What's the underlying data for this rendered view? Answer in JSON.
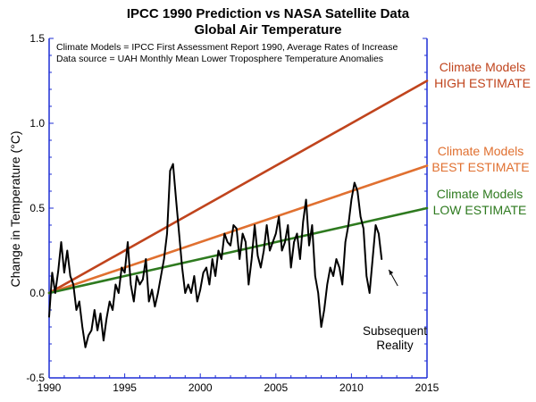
{
  "colors": {
    "axis": "#1f2fd6",
    "high": "#c0441d",
    "best": "#e07030",
    "low": "#2e7a1f",
    "observed": "#000000"
  },
  "chart_data": {
    "type": "line",
    "title": "IPCC 1990 Prediction vs NASA Satellite Data",
    "subtitle": "Global Air Temperature",
    "ylabel": "Change in Temperature (°C)",
    "xlabel": "",
    "notes": [
      "Climate Models = IPCC First Assessment Report 1990, Average Rates of Increase",
      "Data source = UAH Monthly Mean Lower Troposphere Temperature Anomalies"
    ],
    "xlim": [
      1990,
      2015
    ],
    "ylim": [
      -0.5,
      1.5
    ],
    "x_ticks": [
      "1990",
      "1995",
      "2000",
      "2005",
      "2010",
      "2015"
    ],
    "y_ticks": [
      "-0.5",
      "0.0",
      "0.5",
      "1.0",
      "1.5"
    ],
    "grid": false,
    "series": [
      {
        "key": "high",
        "label_lines": [
          "Climate Models",
          "HIGH ESTIMATE"
        ],
        "x": [
          1990,
          2015
        ],
        "y": [
          0.0,
          1.25
        ]
      },
      {
        "key": "best",
        "label_lines": [
          "Climate Models",
          "BEST ESTIMATE"
        ],
        "x": [
          1990,
          2015
        ],
        "y": [
          0.0,
          0.75
        ]
      },
      {
        "key": "low",
        "label_lines": [
          "Climate Models",
          "LOW ESTIMATE"
        ],
        "x": [
          1990,
          2015
        ],
        "y": [
          0.0,
          0.5
        ]
      },
      {
        "key": "observed",
        "label_lines": [
          "Subsequent",
          "Reality"
        ],
        "x": [
          1990,
          1990.2,
          1990.4,
          1990.6,
          1990.8,
          1991.0,
          1991.2,
          1991.4,
          1991.6,
          1991.8,
          1992.0,
          1992.2,
          1992.4,
          1992.6,
          1992.8,
          1993.0,
          1993.2,
          1993.4,
          1993.6,
          1993.8,
          1994.0,
          1994.2,
          1994.4,
          1994.6,
          1994.8,
          1995.0,
          1995.2,
          1995.4,
          1995.6,
          1995.8,
          1996.0,
          1996.2,
          1996.4,
          1996.6,
          1996.8,
          1997.0,
          1997.2,
          1997.4,
          1997.6,
          1997.8,
          1998.0,
          1998.2,
          1998.4,
          1998.6,
          1998.8,
          1999.0,
          1999.2,
          1999.4,
          1999.6,
          1999.8,
          2000.0,
          2000.2,
          2000.4,
          2000.6,
          2000.8,
          2001.0,
          2001.2,
          2001.4,
          2001.6,
          2001.8,
          2002.0,
          2002.2,
          2002.4,
          2002.6,
          2002.8,
          2003.0,
          2003.2,
          2003.4,
          2003.6,
          2003.8,
          2004.0,
          2004.2,
          2004.4,
          2004.6,
          2004.8,
          2005.0,
          2005.2,
          2005.4,
          2005.6,
          2005.8,
          2006.0,
          2006.2,
          2006.4,
          2006.6,
          2006.8,
          2007.0,
          2007.2,
          2007.4,
          2007.6,
          2007.8,
          2008.0,
          2008.2,
          2008.4,
          2008.6,
          2008.8,
          2009.0,
          2009.2,
          2009.4,
          2009.6,
          2009.8,
          2010.0,
          2010.2,
          2010.4,
          2010.6,
          2010.8,
          2011.0,
          2011.2,
          2011.4,
          2011.6,
          2011.8,
          2012.0
        ],
        "y": [
          -0.14,
          0.12,
          0.0,
          0.13,
          0.3,
          0.12,
          0.25,
          0.1,
          0.05,
          -0.1,
          -0.05,
          -0.2,
          -0.32,
          -0.25,
          -0.22,
          -0.1,
          -0.22,
          -0.12,
          -0.28,
          -0.15,
          -0.05,
          -0.1,
          0.05,
          0.0,
          0.15,
          0.12,
          0.3,
          0.05,
          -0.05,
          0.1,
          0.05,
          0.08,
          0.2,
          -0.05,
          0.02,
          -0.08,
          0.0,
          0.1,
          0.2,
          0.35,
          0.72,
          0.76,
          0.55,
          0.35,
          0.15,
          0.0,
          0.05,
          0.0,
          0.1,
          -0.05,
          0.02,
          0.12,
          0.15,
          0.05,
          0.2,
          0.1,
          0.25,
          0.2,
          0.35,
          0.3,
          0.28,
          0.4,
          0.38,
          0.2,
          0.35,
          0.3,
          0.05,
          0.2,
          0.4,
          0.22,
          0.15,
          0.25,
          0.4,
          0.25,
          0.3,
          0.35,
          0.45,
          0.25,
          0.3,
          0.4,
          0.15,
          0.3,
          0.35,
          0.2,
          0.42,
          0.55,
          0.28,
          0.4,
          0.1,
          0.0,
          -0.2,
          -0.1,
          0.05,
          0.15,
          0.1,
          0.2,
          0.15,
          0.05,
          0.3,
          0.4,
          0.55,
          0.65,
          0.6,
          0.45,
          0.38,
          0.1,
          0.0,
          0.2,
          0.4,
          0.35,
          0.2
        ]
      }
    ]
  }
}
